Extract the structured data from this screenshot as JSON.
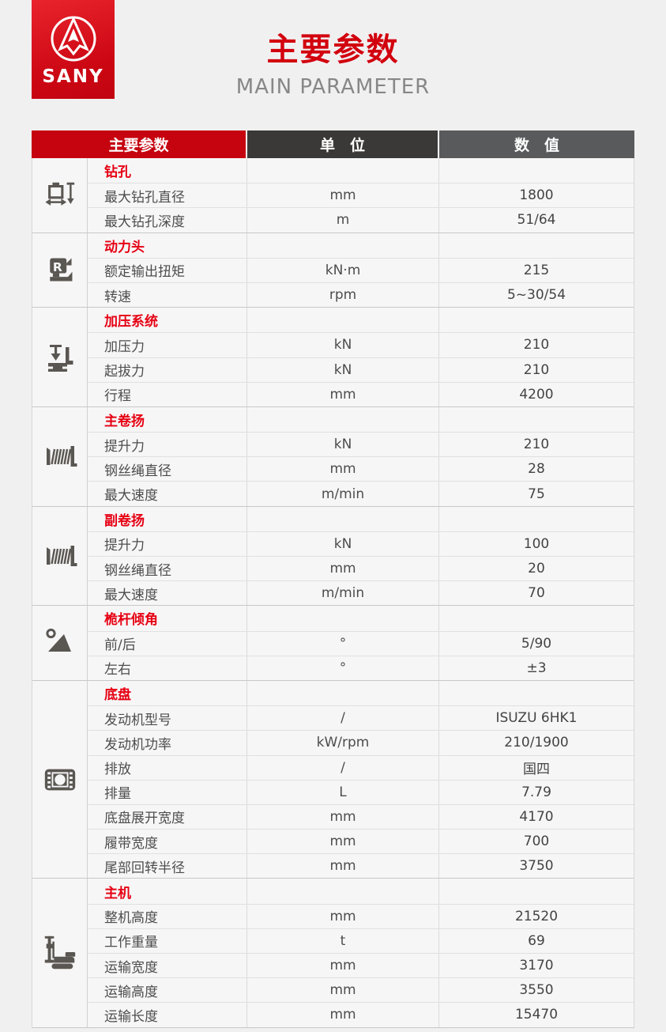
{
  "page": {
    "brand": "SANY",
    "title": "主要参数",
    "subtitle": "MAIN PARAMETER"
  },
  "colors": {
    "header_red": "#c5040f",
    "section_title_red": "#e60012",
    "header_dark": "#3b3937",
    "header_gray": "#595a5c",
    "logo_red": "#d5131c",
    "title_red": "#d2010e",
    "subtitle_gray": "#878787",
    "icon_gray": "#5a5651"
  },
  "table": {
    "header": {
      "param": "主要参数",
      "unit": "单　位",
      "value": "数　值"
    },
    "sections": [
      {
        "title": "钻孔",
        "icon": "drill-hole-icon",
        "rows": [
          {
            "param": "最大钻孔直径",
            "unit": "mm",
            "value": "1800"
          },
          {
            "param": "最大钻孔深度",
            "unit": "m",
            "value": "51/64"
          }
        ]
      },
      {
        "title": "动力头",
        "icon": "rotary-head-icon",
        "rows": [
          {
            "param": "额定输出扭矩",
            "unit": "kN·m",
            "value": "215"
          },
          {
            "param": "转速",
            "unit": "rpm",
            "value": "5~30/54"
          }
        ]
      },
      {
        "title": "加压系统",
        "icon": "crowd-system-icon",
        "rows": [
          {
            "param": "加压力",
            "unit": "kN",
            "value": "210"
          },
          {
            "param": "起拔力",
            "unit": "kN",
            "value": "210"
          },
          {
            "param": "行程",
            "unit": "mm",
            "value": "4200"
          }
        ]
      },
      {
        "title": "主卷扬",
        "icon": "main-winch-icon",
        "rows": [
          {
            "param": "提升力",
            "unit": "kN",
            "value": "210"
          },
          {
            "param": "钢丝绳直径",
            "unit": "mm",
            "value": "28"
          },
          {
            "param": "最大速度",
            "unit": "m/min",
            "value": "75"
          }
        ]
      },
      {
        "title": "副卷扬",
        "icon": "aux-winch-icon",
        "rows": [
          {
            "param": "提升力",
            "unit": "kN",
            "value": "100"
          },
          {
            "param": "钢丝绳直径",
            "unit": "mm",
            "value": "20"
          },
          {
            "param": "最大速度",
            "unit": "m/min",
            "value": "70"
          }
        ]
      },
      {
        "title": "桅杆倾角",
        "icon": "mast-angle-icon",
        "rows": [
          {
            "param": "前/后",
            "unit": "°",
            "value": "5/90"
          },
          {
            "param": "左右",
            "unit": "°",
            "value": "±3"
          }
        ]
      },
      {
        "title": "底盘",
        "icon": "chassis-icon",
        "rows": [
          {
            "param": "发动机型号",
            "unit": "/",
            "value": "ISUZU 6HK1"
          },
          {
            "param": "发动机功率",
            "unit": "kW/rpm",
            "value": "210/1900"
          },
          {
            "param": "排放",
            "unit": "/",
            "value": "国四"
          },
          {
            "param": "排量",
            "unit": "L",
            "value": "7.79"
          },
          {
            "param": "底盘展开宽度",
            "unit": "mm",
            "value": "4170"
          },
          {
            "param": "履带宽度",
            "unit": "mm",
            "value": "700"
          },
          {
            "param": "尾部回转半径",
            "unit": "mm",
            "value": "3750"
          }
        ]
      },
      {
        "title": "主机",
        "icon": "rig-icon",
        "rows": [
          {
            "param": "整机高度",
            "unit": "mm",
            "value": "21520"
          },
          {
            "param": "工作重量",
            "unit": "t",
            "value": "69"
          },
          {
            "param": "运输宽度",
            "unit": "mm",
            "value": "3170"
          },
          {
            "param": "运输高度",
            "unit": "mm",
            "value": "3550"
          },
          {
            "param": "运输长度",
            "unit": "mm",
            "value": "15470"
          }
        ]
      }
    ]
  }
}
